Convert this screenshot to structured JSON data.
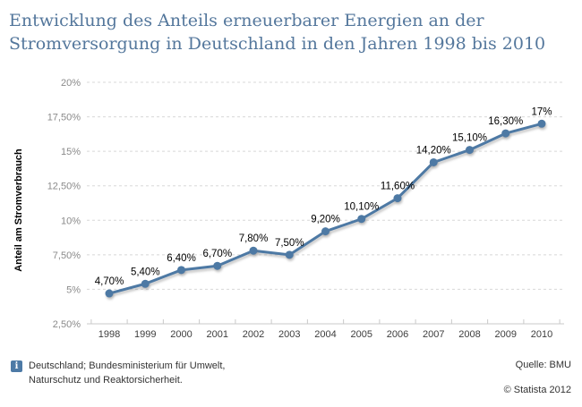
{
  "header": {
    "title_lines": [
      "Entwicklung des Anteils erneuerbarer Energien an der",
      "Stromversorgung in Deutschland in den Jahren 1998 bis 2010"
    ]
  },
  "colors": {
    "title": "#54779c",
    "line": "#4e79a4",
    "grid": "#d8d8d8",
    "axis": "#c9c9c9",
    "y_tick_label": "#8a8a8a",
    "x_tick_label": "#3d3d3d",
    "info_icon_bg": "#4d7aa6"
  },
  "chart_data": {
    "type": "line",
    "title": "Entwicklung des Anteils erneuerbarer Energien an der Stromversorgung in Deutschland in den Jahren 1998 bis 2010",
    "categories": [
      "1998",
      "1999",
      "2000",
      "2001",
      "2002",
      "2003",
      "2004",
      "2005",
      "2006",
      "2007",
      "2008",
      "2009",
      "2010"
    ],
    "values": [
      4.7,
      5.4,
      6.4,
      6.7,
      7.8,
      7.5,
      9.2,
      10.1,
      11.6,
      14.2,
      15.1,
      16.3,
      17.0
    ],
    "value_labels": [
      "4,70%",
      "5,40%",
      "6,40%",
      "6,70%",
      "7,80%",
      "7,50%",
      "9,20%",
      "10,10%",
      "11,60%",
      "14,20%",
      "15,10%",
      "16,30%",
      "17%"
    ],
    "xlabel": "",
    "ylabel": "Anteil am Stromverbrauch",
    "ylim": [
      2.5,
      20
    ],
    "y_ticks": [
      {
        "value": 2.5,
        "label": "2,50%"
      },
      {
        "value": 5,
        "label": "5%"
      },
      {
        "value": 7.5,
        "label": "7,50%"
      },
      {
        "value": 10,
        "label": "10%"
      },
      {
        "value": 12.5,
        "label": "12,50%"
      },
      {
        "value": 15,
        "label": "15%"
      },
      {
        "value": 17.5,
        "label": "17,50%"
      },
      {
        "value": 20,
        "label": "20%"
      }
    ],
    "grid": "dotted-horizontal",
    "legend": "none",
    "line_color": "#4e79a4",
    "marker": "circle"
  },
  "footer": {
    "info_icon_glyph": "i",
    "note_lines": [
      "Deutschland; Bundesministerium für Umwelt,",
      "Naturschutz und Reaktorsicherheit."
    ],
    "source": "Quelle: BMU",
    "copyright": "© Statista 2012"
  }
}
